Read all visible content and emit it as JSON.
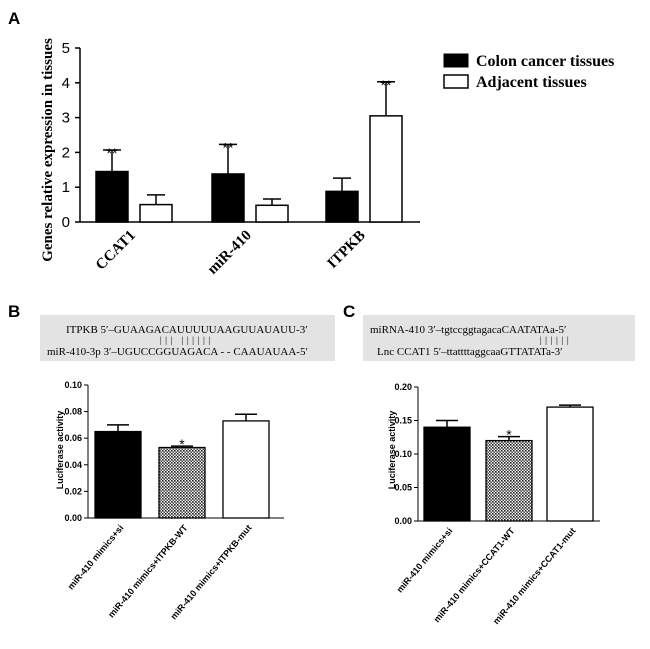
{
  "panels": {
    "a": "A",
    "b": "B",
    "c": "C"
  },
  "chart_data": [
    {
      "panel": "A",
      "type": "bar",
      "title": "",
      "xlabel": "",
      "ylabel": "Genes relative expression in tissues",
      "ylim": [
        0,
        5
      ],
      "yticks": [
        "0",
        "1",
        "2",
        "3",
        "4",
        "5"
      ],
      "categories": [
        "CCAT1",
        "miR-410",
        "ITPKB"
      ],
      "series": [
        {
          "name": "Colon cancer tissues",
          "fill": "#000000",
          "values": [
            1.45,
            1.38,
            0.88
          ],
          "errors": [
            0.62,
            0.85,
            0.38
          ]
        },
        {
          "name": "Adjacent tissues",
          "fill": "#ffffff",
          "values": [
            0.5,
            0.48,
            3.05
          ],
          "errors": [
            0.28,
            0.18,
            0.98
          ]
        }
      ],
      "annotations": [
        {
          "category": "CCAT1",
          "series": "Colon cancer tissues",
          "text": "**"
        },
        {
          "category": "miR-410",
          "series": "Colon cancer tissues",
          "text": "**"
        },
        {
          "category": "ITPKB",
          "series": "Adjacent tissues",
          "text": "**"
        }
      ],
      "legend": "top-right"
    },
    {
      "panel": "B",
      "type": "bar",
      "ylabel": "Luciferase activity",
      "ylim": [
        0,
        0.1
      ],
      "yticks": [
        "0.00",
        "0.02",
        "0.04",
        "0.06",
        "0.08",
        "0.10"
      ],
      "categories": [
        "miR-410 mimics+si",
        "miR-410 mimics+ITPKB-WT",
        "miR-410 mimics+ITPKB-mut"
      ],
      "values": [
        0.065,
        0.053,
        0.073
      ],
      "errors": [
        0.005,
        0.001,
        0.005
      ],
      "styles": [
        "black",
        "hatched",
        "white"
      ],
      "annotations": [
        {
          "category": "miR-410 mimics+ITPKB-WT",
          "text": "*"
        }
      ],
      "sequence": {
        "line1": "ITPKB 5′–GUAAGACAUUUUUAAGUUAUAUU-3′",
        "pairing": "|||              ||||||",
        "line2": "miR-410-3p 3′–UGUCCGGUAGACA - - CAAUAUAA-5′"
      }
    },
    {
      "panel": "C",
      "type": "bar",
      "ylabel": "Luciferase activity",
      "ylim": [
        0,
        0.2
      ],
      "yticks": [
        "0.00",
        "0.05",
        "0.10",
        "0.15",
        "0.20"
      ],
      "categories": [
        "miR-410 mimics+si",
        "miR-410 mimics+CCAT1-WT",
        "miR-410 mimics+CCAT1-mut"
      ],
      "values": [
        0.14,
        0.12,
        0.17
      ],
      "errors": [
        0.01,
        0.006,
        0.003
      ],
      "styles": [
        "black",
        "hatched",
        "white"
      ],
      "annotations": [
        {
          "category": "miR-410 mimics+CCAT1-WT",
          "text": "*"
        }
      ],
      "sequence": {
        "line1": "miRNA-410 3′–tgtccggtagacaCAATATAa-5′",
        "pairing": "||||||",
        "line2": "Lnc CCAT1 5′–ttattttaggcaaGTTATATa-3′"
      }
    }
  ]
}
